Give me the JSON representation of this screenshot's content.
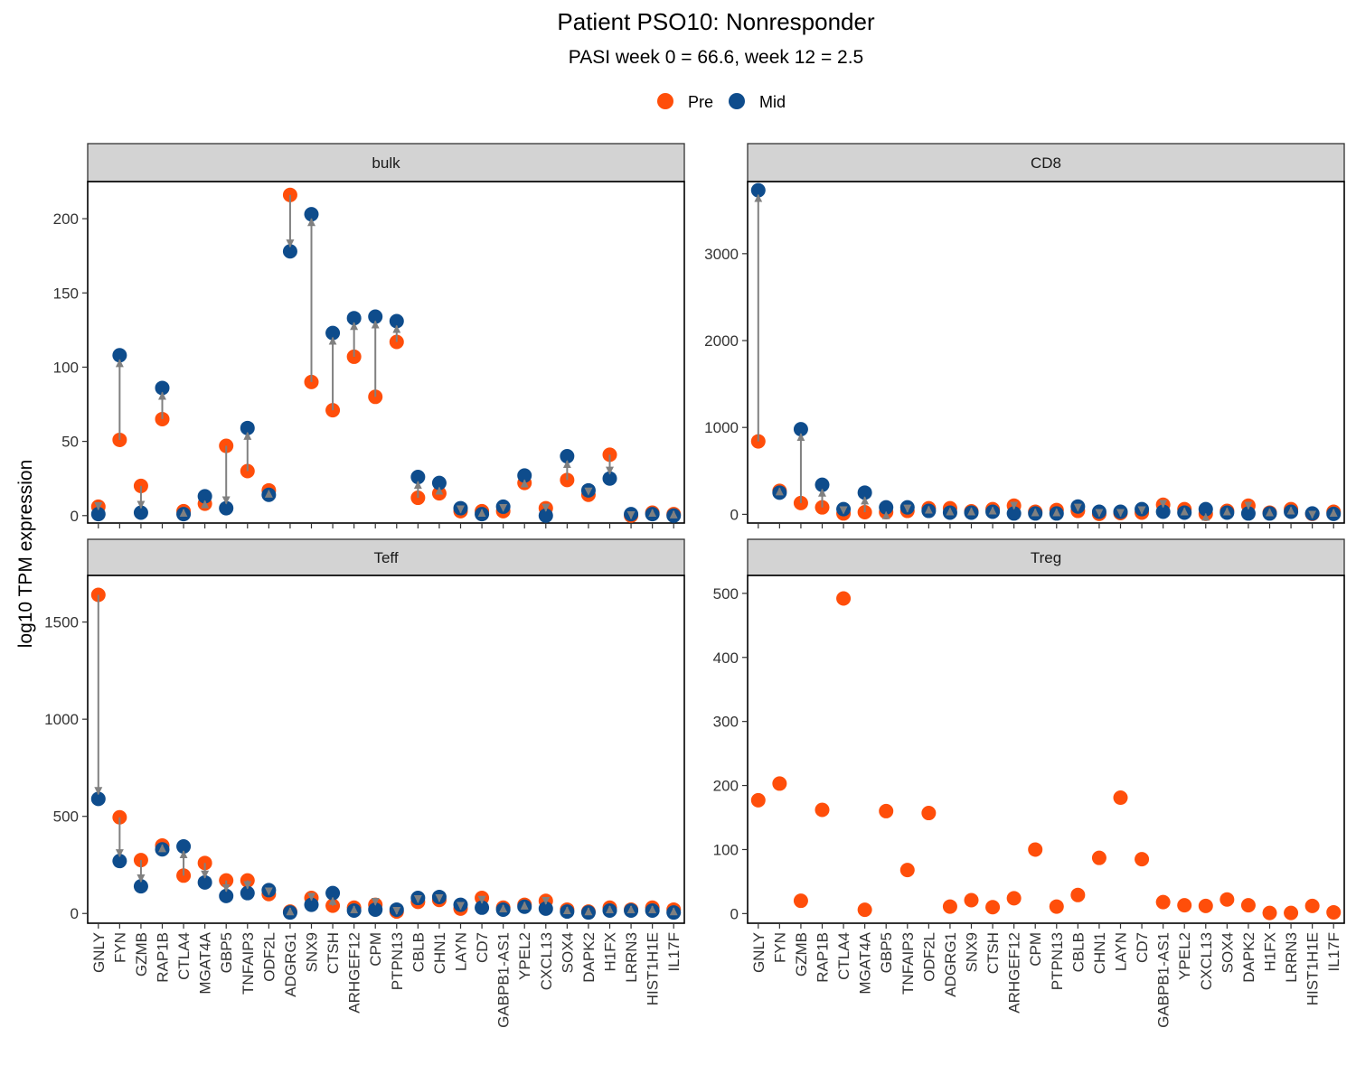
{
  "title": "Patient PSO10: Nonresponder",
  "subtitle": "PASI week 0 = 66.6, week 12 = 2.5",
  "ylabel": "log10 TPM expression",
  "legend": {
    "placement": "top",
    "items": [
      {
        "name": "Pre",
        "color": "#FF4E0A"
      },
      {
        "name": "Mid",
        "color": "#0E4C8C"
      }
    ]
  },
  "colors": {
    "pre": "#FF4E0A",
    "mid": "#0E4C8C",
    "arrow": "#808080",
    "strip": "#D3D3D3"
  },
  "chart_data": {
    "type": "scatter",
    "categories": [
      "GNLY",
      "FYN",
      "GZMB",
      "RAP1B",
      "CTLA4",
      "MGAT4A",
      "GBP5",
      "TNFAIP3",
      "ODF2L",
      "ADGRG1",
      "SNX9",
      "CTSH",
      "ARHGEF12",
      "CPM",
      "PTPN13",
      "CBLB",
      "CHN1",
      "LAYN",
      "CD7",
      "GABPB1-AS1",
      "YPEL2",
      "CXCL13",
      "SOX4",
      "DAPK2",
      "H1FX",
      "LRRN3",
      "HIST1H1E",
      "IL17F"
    ],
    "panels": [
      {
        "name": "bulk",
        "ylim": [
          -5,
          225
        ],
        "yticks": [
          0,
          50,
          100,
          150,
          200
        ],
        "pre": [
          6,
          51,
          20,
          65,
          3,
          8,
          47,
          30,
          17,
          216,
          90,
          71,
          107,
          80,
          117,
          12,
          15,
          3,
          3,
          3,
          22,
          5,
          24,
          14,
          41,
          0,
          2,
          1
        ],
        "mid": [
          1,
          108,
          2,
          86,
          1,
          13,
          5,
          59,
          14,
          178,
          203,
          123,
          133,
          134,
          131,
          26,
          22,
          5,
          1,
          6,
          27,
          0,
          40,
          17,
          25,
          1,
          1,
          0
        ]
      },
      {
        "name": "CD8",
        "ylim": [
          -100,
          3830
        ],
        "yticks": [
          0,
          1000,
          2000,
          3000
        ],
        "pre": [
          840,
          270,
          130,
          80,
          10,
          25,
          25,
          40,
          70,
          70,
          35,
          60,
          100,
          30,
          50,
          40,
          5,
          15,
          20,
          110,
          60,
          5,
          40,
          100,
          20,
          60,
          5,
          30
        ],
        "mid": [
          3730,
          250,
          980,
          340,
          60,
          250,
          80,
          80,
          40,
          20,
          20,
          30,
          10,
          10,
          10,
          90,
          30,
          30,
          60,
          30,
          20,
          60,
          20,
          10,
          10,
          30,
          10,
          5
        ]
      },
      {
        "name": "Teff",
        "ylim": [
          -50,
          1740
        ],
        "yticks": [
          0,
          500,
          1000,
          1500
        ],
        "pre": [
          1640,
          495,
          275,
          350,
          195,
          260,
          170,
          170,
          100,
          10,
          80,
          40,
          30,
          45,
          10,
          60,
          70,
          25,
          80,
          30,
          45,
          65,
          20,
          10,
          30,
          20,
          30,
          20
        ],
        "mid": [
          590,
          270,
          140,
          330,
          345,
          160,
          90,
          105,
          120,
          5,
          45,
          105,
          15,
          20,
          20,
          80,
          85,
          45,
          30,
          20,
          35,
          25,
          10,
          5,
          15,
          15,
          15,
          5
        ]
      },
      {
        "name": "Treg",
        "ylim": [
          -15,
          528
        ],
        "yticks": [
          0,
          100,
          200,
          300,
          400,
          500
        ],
        "pre": [
          177,
          203,
          20,
          162,
          492,
          6,
          160,
          68,
          157,
          11,
          21,
          10,
          24,
          100,
          11,
          29,
          87,
          181,
          85,
          18,
          13,
          12,
          22,
          13,
          1,
          1,
          12,
          2
        ],
        "mid": []
      }
    ]
  }
}
